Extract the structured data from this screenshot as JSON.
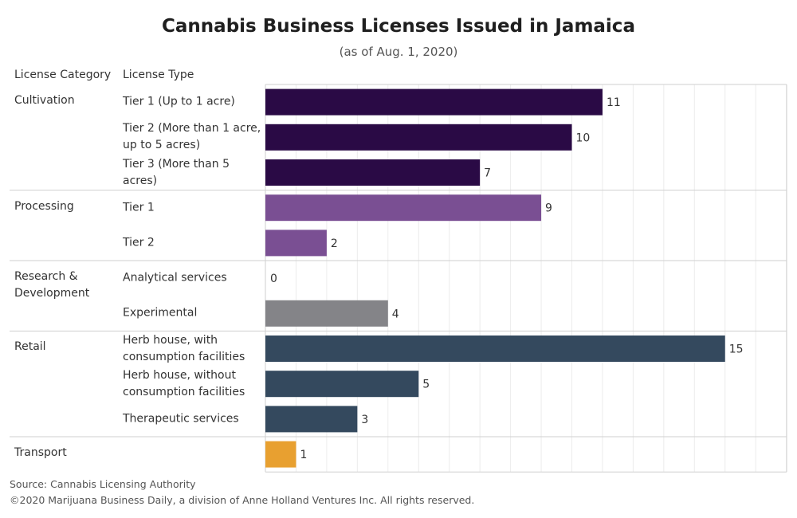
{
  "chart_data": {
    "type": "bar",
    "orientation": "horizontal",
    "title": "Cannabis Business Licenses Issued in Jamaica",
    "subtitle": "(as of Aug. 1, 2020)",
    "column_headers": {
      "category": "License Category",
      "type": "License Type"
    },
    "xlim": [
      0,
      17
    ],
    "grid": true,
    "groups": [
      {
        "category": "Cultivation",
        "color": "#2a0a45",
        "items": [
          {
            "label": "Tier 1 (Up to 1 acre)",
            "value": 11
          },
          {
            "label": "Tier 2 (More than 1 acre, up to 5 acres)",
            "value": 10
          },
          {
            "label": "Tier 3 (More than 5 acres)",
            "value": 7
          }
        ]
      },
      {
        "category": "Processing",
        "color": "#7a4f93",
        "items": [
          {
            "label": "Tier 1",
            "value": 9
          },
          {
            "label": "Tier 2",
            "value": 2
          }
        ]
      },
      {
        "category": "Research & Development",
        "color": "#848488",
        "items": [
          {
            "label": "Analytical services",
            "value": 0
          },
          {
            "label": "Experimental",
            "value": 4
          }
        ]
      },
      {
        "category": "Retail",
        "color": "#34495e",
        "items": [
          {
            "label": "Herb house, with consumption facilities",
            "value": 15
          },
          {
            "label": "Herb house, without consumption facilities",
            "value": 5
          },
          {
            "label": "Therapeutic services",
            "value": 3
          }
        ]
      },
      {
        "category": "Transport",
        "color": "#e8a030",
        "items": [
          {
            "label": "",
            "value": 1
          }
        ]
      }
    ]
  },
  "footer": {
    "source": "Source: Cannabis Licensing Authority",
    "copyright": "©2020 Marijuana Business Daily, a division of Anne Holland Ventures Inc. All rights reserved."
  }
}
